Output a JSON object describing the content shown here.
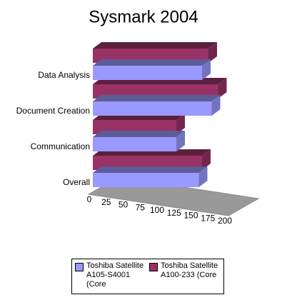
{
  "chart_data": {
    "type": "bar3d",
    "title": "Sysmark 2004",
    "categories": [
      "Overall",
      "Communication",
      "Document Creation",
      "Data Analysis"
    ],
    "series": [
      {
        "name": "Toshiba Satellite A105-S4001 (Core",
        "color": "#9999ff",
        "values": [
          165,
          130,
          185,
          170
        ]
      },
      {
        "name": "Toshiba Satellite A100-233 (Core",
        "color": "#993366",
        "values": [
          170,
          130,
          195,
          180
        ]
      }
    ],
    "xlim": [
      0,
      200
    ],
    "xticks": [
      0,
      25,
      50,
      75,
      100,
      125,
      150,
      175,
      200
    ]
  }
}
